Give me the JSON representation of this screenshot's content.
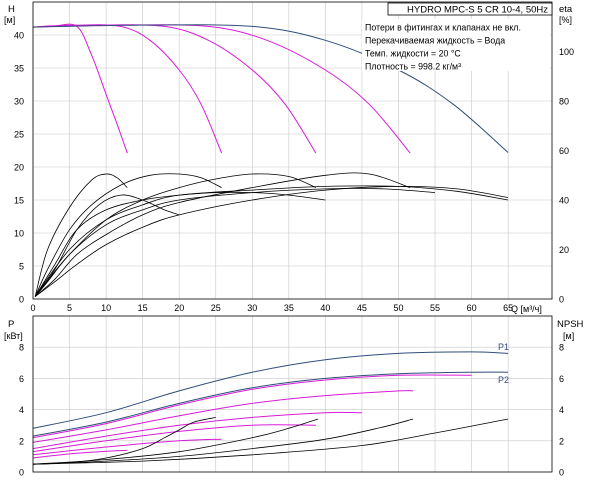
{
  "chart_data": [
    {
      "type": "line",
      "panel": "head",
      "title": "HYDRO MPC-S 5 CR 10-4, 50Hz",
      "notes": [
        "Потери в фитингах и клапанах не вкл.",
        "Перекачиваемая жидкость = Вода",
        "Темп. жидкости = 20 °C",
        "Плотность = 998.2 кг/м³"
      ],
      "xlabel": "Q [м³/ч]",
      "x_ticks": [
        "0",
        "5",
        "10",
        "15",
        "20",
        "25",
        "30",
        "35",
        "40",
        "45",
        "50",
        "55",
        "60",
        "65"
      ],
      "xlim": [
        0,
        71
      ],
      "ylabel_left": "H",
      "ylabel_left_unit": "[м]",
      "yticks_left": [
        "0",
        "5",
        "10",
        "15",
        "20",
        "25",
        "30",
        "35",
        "40"
      ],
      "ylim_left": [
        0,
        45
      ],
      "ylabel_right": "eta",
      "ylabel_right_unit": "[%]",
      "yticks_right": [
        "0",
        "20",
        "40",
        "60",
        "80",
        "100"
      ],
      "ylim_right": [
        0,
        120
      ],
      "grid": true,
      "series": [
        {
          "role": "H",
          "color": "#d81bd8",
          "values": [
            [
              0,
              41.2
            ],
            [
              3,
              41.4
            ],
            [
              6,
              41.3
            ],
            [
              8,
              37
            ],
            [
              10,
              31
            ],
            [
              11.5,
              26.5
            ],
            [
              12.9,
              22.1
            ]
          ]
        },
        {
          "role": "H",
          "color": "#d81bd8",
          "values": [
            [
              0,
              41.2
            ],
            [
              6,
              41.5
            ],
            [
              12,
              41.3
            ],
            [
              16,
              39.2
            ],
            [
              20,
              34.7
            ],
            [
              23,
              29.5
            ],
            [
              25.8,
              22.1
            ]
          ]
        },
        {
          "role": "H",
          "color": "#d81bd8",
          "values": [
            [
              0,
              41.2
            ],
            [
              9,
              41.5
            ],
            [
              18,
              41.3
            ],
            [
              24,
              39.2
            ],
            [
              30,
              34.7
            ],
            [
              34.5,
              29.5
            ],
            [
              38.7,
              22.1
            ]
          ]
        },
        {
          "role": "H",
          "color": "#d81bd8",
          "values": [
            [
              0,
              41.2
            ],
            [
              12,
              41.5
            ],
            [
              24,
              41.3
            ],
            [
              32,
              39.2
            ],
            [
              40,
              34.7
            ],
            [
              46,
              29.5
            ],
            [
              51.6,
              22.1
            ]
          ]
        },
        {
          "role": "H",
          "color": "#304e7a",
          "values": [
            [
              0,
              41.2
            ],
            [
              15,
              41.5
            ],
            [
              30,
              41.3
            ],
            [
              40,
              39.2
            ],
            [
              50,
              34.7
            ],
            [
              57.5,
              29.5
            ],
            [
              65,
              22.2
            ]
          ]
        },
        {
          "role": "eta",
          "color": "#000000",
          "values": [
            [
              0.3,
              1
            ],
            [
              2,
              20
            ],
            [
              5,
              37
            ],
            [
              8,
              48
            ],
            [
              10,
              50.5
            ],
            [
              11.5,
              49
            ],
            [
              12.9,
              45
            ]
          ]
        },
        {
          "role": "eta",
          "color": "#000000",
          "values": [
            [
              0.3,
              1
            ],
            [
              2,
              12
            ],
            [
              5,
              28
            ],
            [
              8,
              38
            ],
            [
              12,
              46
            ],
            [
              16,
              50
            ],
            [
              20,
              50.5
            ],
            [
              23,
              49
            ],
            [
              25.8,
              45
            ]
          ]
        },
        {
          "role": "eta",
          "color": "#000000",
          "values": [
            [
              0.3,
              1
            ],
            [
              2,
              7
            ],
            [
              5,
              18
            ],
            [
              10,
              32
            ],
            [
              15,
              40
            ],
            [
              20,
              45
            ],
            [
              25,
              48.5
            ],
            [
              30,
              50.5
            ],
            [
              35,
              49.5
            ],
            [
              38.7,
              45
            ]
          ]
        },
        {
          "role": "eta",
          "color": "#000000",
          "values": [
            [
              0.3,
              1
            ],
            [
              3,
              8
            ],
            [
              6,
              18
            ],
            [
              10,
              26
            ],
            [
              15,
              34
            ],
            [
              20,
              39
            ],
            [
              30,
              45
            ],
            [
              40,
              50
            ],
            [
              46,
              50.5
            ],
            [
              51.6,
              45
            ]
          ]
        },
        {
          "role": "eta",
          "color": "#000000",
          "values": [
            [
              0.3,
              1
            ],
            [
              3,
              7
            ],
            [
              6,
              14
            ],
            [
              10,
              22
            ],
            [
              15,
              29
            ],
            [
              20,
              34
            ],
            [
              30,
              40
            ],
            [
              40,
              44
            ],
            [
              50,
              45.5
            ],
            [
              58,
              44.5
            ],
            [
              65,
              41
            ]
          ]
        },
        {
          "role": "eta",
          "color": "#000000",
          "values": [
            [
              0.3,
              1
            ],
            [
              3,
              12
            ],
            [
              6,
              28
            ],
            [
              9,
              38
            ],
            [
              12,
              42
            ],
            [
              15,
              40
            ],
            [
              18,
              36
            ],
            [
              20,
              34
            ]
          ]
        },
        {
          "role": "eta",
          "color": "#000000",
          "values": [
            [
              0.3,
              1
            ],
            [
              3,
              14
            ],
            [
              6,
              28
            ],
            [
              10,
              36
            ],
            [
              15,
              40
            ],
            [
              20,
              42
            ],
            [
              25,
              43
            ],
            [
              30,
              43
            ],
            [
              35,
              42
            ],
            [
              40,
              40
            ]
          ]
        },
        {
          "role": "eta",
          "color": "#000000",
          "values": [
            [
              0.3,
              1
            ],
            [
              5,
              18
            ],
            [
              10,
              30
            ],
            [
              15,
              36
            ],
            [
              20,
              40
            ],
            [
              30,
              43
            ],
            [
              40,
              44.5
            ],
            [
              48,
              44.5
            ],
            [
              55,
              43
            ]
          ]
        },
        {
          "role": "eta",
          "color": "#000000",
          "values": [
            [
              0.3,
              1
            ],
            [
              5,
              20
            ],
            [
              10,
              32
            ],
            [
              15,
              38
            ],
            [
              20,
              42
            ],
            [
              30,
              44
            ],
            [
              40,
              45.5
            ],
            [
              50,
              45.5
            ],
            [
              58,
              43.5
            ],
            [
              65,
              40
            ]
          ]
        }
      ]
    },
    {
      "type": "line",
      "panel": "power_npsh",
      "ylabel_left": "P",
      "ylabel_left_unit": "[кВт]",
      "yticks_left": [
        "0",
        "2",
        "4",
        "6",
        "8"
      ],
      "ylim_left": [
        0,
        10
      ],
      "ylabel_right": "NPSH",
      "ylabel_right_unit": "[м]",
      "yticks_right": [
        "0",
        "2",
        "4",
        "6",
        "8"
      ],
      "ylim_right": [
        0,
        10
      ],
      "curve_labels": [
        "P1",
        "P2"
      ],
      "grid": true,
      "series": [
        {
          "role": "P1",
          "color": "#304e7a",
          "values": [
            [
              0,
              2.8
            ],
            [
              10,
              3.8
            ],
            [
              20,
              5.2
            ],
            [
              30,
              6.4
            ],
            [
              40,
              7.2
            ],
            [
              50,
              7.6
            ],
            [
              60,
              7.7
            ],
            [
              65,
              7.6
            ]
          ]
        },
        {
          "role": "P2",
          "color": "#304e7a",
          "values": [
            [
              0,
              2.3
            ],
            [
              10,
              3.2
            ],
            [
              20,
              4.4
            ],
            [
              30,
              5.4
            ],
            [
              40,
              6.0
            ],
            [
              50,
              6.3
            ],
            [
              60,
              6.4
            ],
            [
              65,
              6.4
            ]
          ]
        },
        {
          "role": "P",
          "color": "#d81bd8",
          "values": [
            [
              0,
              2.2
            ],
            [
              10,
              3.1
            ],
            [
              20,
              4.3
            ],
            [
              30,
              5.3
            ],
            [
              40,
              5.9
            ],
            [
              50,
              6.2
            ],
            [
              60,
              6.2
            ]
          ]
        },
        {
          "role": "P",
          "color": "#d81bd8",
          "values": [
            [
              0,
              1.9
            ],
            [
              10,
              2.7
            ],
            [
              20,
              3.6
            ],
            [
              30,
              4.4
            ],
            [
              40,
              4.9
            ],
            [
              50,
              5.2
            ],
            [
              52,
              5.2
            ]
          ]
        },
        {
          "role": "P",
          "color": "#d81bd8",
          "values": [
            [
              0,
              1.5
            ],
            [
              10,
              2.3
            ],
            [
              20,
              3.0
            ],
            [
              30,
              3.5
            ],
            [
              40,
              3.8
            ],
            [
              45,
              3.8
            ]
          ]
        },
        {
          "role": "P",
          "color": "#d81bd8",
          "values": [
            [
              0,
              1.3
            ],
            [
              10,
              2.0
            ],
            [
              20,
              2.6
            ],
            [
              30,
              3.0
            ],
            [
              38.7,
              3.0
            ]
          ]
        },
        {
          "role": "P",
          "color": "#d81bd8",
          "values": [
            [
              0,
              1.1
            ],
            [
              10,
              1.6
            ],
            [
              20,
              2.0
            ],
            [
              25.8,
              2.1
            ]
          ]
        },
        {
          "role": "P",
          "color": "#d81bd8",
          "values": [
            [
              0,
              0.9
            ],
            [
              6,
              1.2
            ],
            [
              12.9,
              1.4
            ]
          ]
        },
        {
          "role": "NPSH",
          "color": "#000000",
          "values": [
            [
              0,
              0.5
            ],
            [
              5,
              0.6
            ],
            [
              10,
              0.9
            ],
            [
              15,
              1.5
            ],
            [
              18,
              2.2
            ],
            [
              20,
              2.7
            ],
            [
              22,
              3.2
            ],
            [
              25,
              3.5
            ]
          ]
        },
        {
          "role": "NPSH",
          "color": "#000000",
          "values": [
            [
              0,
              0.5
            ],
            [
              10,
              0.8
            ],
            [
              20,
              1.3
            ],
            [
              30,
              2.2
            ],
            [
              35,
              2.8
            ],
            [
              39,
              3.4
            ]
          ]
        },
        {
          "role": "NPSH",
          "color": "#000000",
          "values": [
            [
              0,
              0.5
            ],
            [
              10,
              0.7
            ],
            [
              20,
              1.0
            ],
            [
              30,
              1.5
            ],
            [
              40,
              2.1
            ],
            [
              48,
              2.9
            ],
            [
              52,
              3.4
            ]
          ]
        },
        {
          "role": "NPSH",
          "color": "#000000",
          "values": [
            [
              0,
              0.5
            ],
            [
              15,
              0.7
            ],
            [
              30,
              1.1
            ],
            [
              45,
              1.7
            ],
            [
              55,
              2.5
            ],
            [
              65,
              3.4
            ]
          ]
        }
      ]
    }
  ]
}
